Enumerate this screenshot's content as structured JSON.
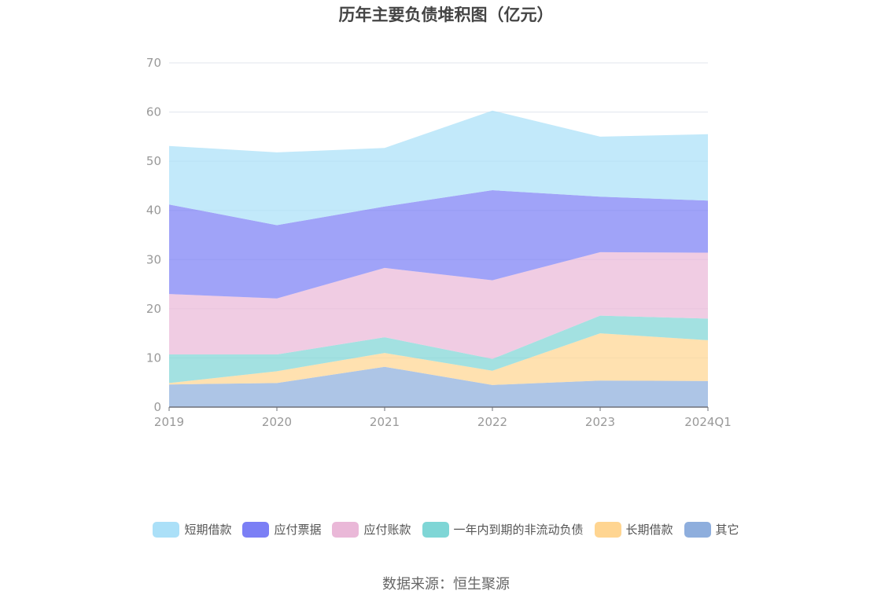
{
  "title": "历年主要负债堆积图（亿元）",
  "source": "数据来源：恒生聚源",
  "chart_data": {
    "type": "area",
    "stacked": true,
    "categories": [
      "2019",
      "2020",
      "2021",
      "2022",
      "2023",
      "2024Q1"
    ],
    "ylim": [
      0,
      70
    ],
    "yticks": [
      0,
      10,
      20,
      30,
      40,
      50,
      60,
      70
    ],
    "grid": true,
    "legend_position": "bottom",
    "series": [
      {
        "name": "其它",
        "color": "#8eaedd",
        "values": [
          4.6,
          4.9,
          8.2,
          4.5,
          5.4,
          5.3
        ]
      },
      {
        "name": "长期借款",
        "color": "#ffd591",
        "values": [
          0.3,
          2.4,
          2.8,
          2.9,
          9.6,
          8.3
        ]
      },
      {
        "name": "一年内到期的非流动负债",
        "color": "#7fd6d6",
        "values": [
          5.8,
          3.4,
          3.2,
          2.4,
          3.6,
          4.4
        ]
      },
      {
        "name": "应付账款",
        "color": "#eab8d8",
        "values": [
          12.3,
          11.4,
          14.1,
          16.0,
          12.9,
          13.4
        ]
      },
      {
        "name": "应付票据",
        "color": "#7b7ff5",
        "values": [
          18.2,
          14.9,
          12.5,
          18.3,
          11.3,
          10.6
        ]
      },
      {
        "name": "短期借款",
        "color": "#abe0f8",
        "values": [
          11.9,
          14.8,
          11.9,
          16.2,
          12.2,
          13.5
        ]
      }
    ],
    "legend_order": [
      "短期借款",
      "应付票据",
      "应付账款",
      "一年内到期的非流动负债",
      "长期借款",
      "其它"
    ]
  }
}
